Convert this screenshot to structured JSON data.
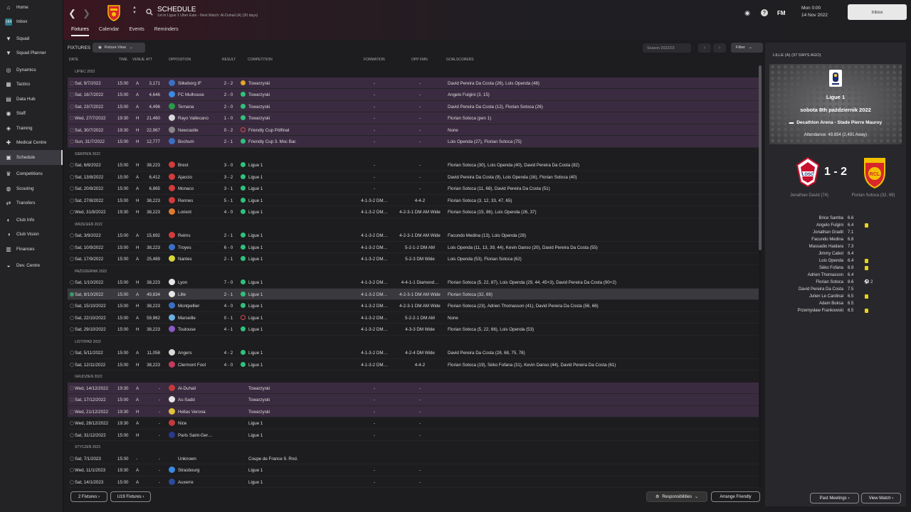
{
  "sidebar": {
    "items": [
      {
        "label": "Home",
        "icon": "home-icon"
      },
      {
        "label": "Inbox",
        "icon": "inbox-icon"
      },
      {
        "label": "Squad",
        "icon": "shirt-icon"
      },
      {
        "label": "Squad Planner",
        "icon": "shirt-icon"
      },
      {
        "label": "Dynamics",
        "icon": "dynamics-icon"
      },
      {
        "label": "Tactics",
        "icon": "tactics-icon"
      },
      {
        "label": "Data Hub",
        "icon": "datahub-icon"
      },
      {
        "label": "Staff",
        "icon": "staff-icon"
      },
      {
        "label": "Training",
        "icon": "training-icon"
      },
      {
        "label": "Medical Centre",
        "icon": "medical-icon"
      },
      {
        "label": "Schedule",
        "icon": "schedule-icon"
      },
      {
        "label": "Competitions",
        "icon": "trophy-icon"
      },
      {
        "label": "Scouting",
        "icon": "scouting-icon"
      },
      {
        "label": "Transfers",
        "icon": "transfers-icon"
      },
      {
        "label": "Club Info",
        "icon": "club-info-icon"
      },
      {
        "label": "Club Vision",
        "icon": "club-vision-icon"
      },
      {
        "label": "Finances",
        "icon": "finances-icon"
      },
      {
        "label": "Dev. Centre",
        "icon": "dev-centre-icon"
      }
    ],
    "inbox_count": "164"
  },
  "header": {
    "title": "SCHEDULE",
    "subtitle": "1st in Ligue 1 Uber Eats - Next Match: Al-Duhail (A) (30 days)",
    "tabs": [
      "Fixtures",
      "Calendar",
      "Events",
      "Reminders"
    ],
    "date_line1": "Mon 0:00",
    "date_line2": "14 Nov 2022",
    "inbox_button": "Inbox",
    "fm_label": "FM"
  },
  "toolbar": {
    "title": "FIXTURES",
    "view_label": "Fixture View",
    "season_label": "Season 2022/23",
    "filter_label": "Filter"
  },
  "columns": {
    "date": "DATE",
    "time": "TIME",
    "venue": "VENUE",
    "att": "ATT",
    "opposition": "OPPOSITION",
    "result": "RESULT",
    "competition": "COMPETITION",
    "formation": "FORMATION",
    "opp_fmn": "OPP FMN",
    "goalscorers": "GOALSCORERS"
  },
  "sections": [
    {
      "label": "LIPIEC 2022",
      "rows": [
        {
          "date": "Sat, 9/7/2022",
          "time": "15:00",
          "venue": "A",
          "att": "3,171",
          "opp": "Silkeborg IF",
          "res": "2 - 2",
          "status": "draw",
          "comp": "Towarzyski",
          "form": "-",
          "oppf": "-",
          "goals": "David Pereira Da Costa (26), Lois Openda (48)",
          "cup": true,
          "crest": "#3a6fc4"
        },
        {
          "date": "Sat, 16/7/2022",
          "time": "15:00",
          "venue": "A",
          "att": "4,646",
          "opp": "FC Mulhouse",
          "res": "2 - 0",
          "status": "win",
          "comp": "Towarzyski",
          "form": "-",
          "oppf": "-",
          "goals": "Angelo Fulgini (3, 15)",
          "cup": true,
          "crest": "#3a8ae0"
        },
        {
          "date": "Sat, 23/7/2022",
          "time": "15:00",
          "venue": "A",
          "att": "4,496",
          "opp": "Ternana",
          "res": "2 - 0",
          "status": "win",
          "comp": "Towarzyski",
          "form": "-",
          "oppf": "-",
          "goals": "David Pereira Da Costa (12), Florian Sotoca (26)",
          "cup": true,
          "crest": "#2a9a4a"
        },
        {
          "date": "Wed, 27/7/2022",
          "time": "19:30",
          "venue": "H",
          "att": "21,460",
          "opp": "Rayo Vallecano",
          "res": "1 - 0",
          "status": "win",
          "comp": "Towarzyski",
          "form": "-",
          "oppf": "-",
          "goals": "Florian Sotoca (pen 1)",
          "cup": true,
          "crest": "#d9d9d9"
        },
        {
          "date": "Sat, 30/7/2022",
          "time": "19:30",
          "venue": "H",
          "att": "22,967",
          "opp": "Newcastle",
          "res": "0 - 2",
          "status": "loss",
          "comp": "Friendly Cup Półfinał",
          "form": "-",
          "oppf": "-",
          "goals": "None",
          "cup": true,
          "crest": "#888888"
        },
        {
          "date": "Sun, 31/7/2022",
          "time": "15:00",
          "venue": "H",
          "att": "12,777",
          "opp": "Bochum",
          "res": "2 - 1",
          "status": "win",
          "comp": "Friendly Cup 3. Msc Bar.",
          "form": "-",
          "oppf": "-",
          "goals": "Lois Openda (27), Florian Sotoca (75)",
          "cup": true,
          "crest": "#3a6fc4"
        }
      ]
    },
    {
      "label": "SIERPIEŃ 2022",
      "rows": [
        {
          "date": "Sat, 6/8/2022",
          "time": "15:00",
          "venue": "H",
          "att": "38,223",
          "opp": "Brest",
          "res": "3 - 0",
          "status": "win",
          "comp": "Ligue 1",
          "form": "-",
          "oppf": "-",
          "goals": "Florian Sotoca (30), Lois Openda (40), David Pereira Da Costa (82)",
          "crest": "#d23b3b"
        },
        {
          "date": "Sat, 13/8/2022",
          "time": "15:00",
          "venue": "A",
          "att": "6,412",
          "opp": "Ajaccio",
          "res": "3 - 2",
          "status": "win",
          "comp": "Ligue 1",
          "form": "-",
          "oppf": "-",
          "goals": "David Pereira Da Costa (9), Lois Openda (16), Florian Sotoca (40)",
          "crest": "#d23b3b"
        },
        {
          "date": "Sat, 20/8/2022",
          "time": "15:00",
          "venue": "A",
          "att": "6,865",
          "opp": "Monaco",
          "res": "3 - 1",
          "status": "win",
          "comp": "Ligue 1",
          "form": "-",
          "oppf": "-",
          "goals": "Florian Sotoca (11, 68), David Pereira Da Costa (51)",
          "crest": "#d23b3b"
        },
        {
          "date": "Sat, 27/8/2022",
          "time": "15:00",
          "venue": "H",
          "att": "38,223",
          "opp": "Rennes",
          "res": "5 - 1",
          "status": "win",
          "comp": "Ligue 1",
          "form": "4-1-3-2 DM…",
          "oppf": "4-4-2",
          "goals": "Florian Sotoca (3, 12, 33, 47, 65)",
          "crest": "#d23b3b"
        },
        {
          "date": "Wed, 31/8/2022",
          "time": "19:30",
          "venue": "H",
          "att": "38,223",
          "opp": "Lorient",
          "res": "4 - 0",
          "status": "win",
          "comp": "Ligue 1",
          "form": "4-1-3-2 DM…",
          "oppf": "4-2-3-1 DM AM Wide",
          "goals": "Florian Sotoca (15, 86), Lois Openda (26, 37)",
          "crest": "#e07a2a"
        }
      ]
    },
    {
      "label": "WRZESIEŃ 2022",
      "rows": [
        {
          "date": "Sat, 3/9/2022",
          "time": "15:00",
          "venue": "A",
          "att": "15,692",
          "opp": "Reims",
          "res": "2 - 1",
          "status": "win",
          "comp": "Ligue 1",
          "form": "4-1-3-2 DM…",
          "oppf": "4-2-3-1 DM AM Wide",
          "goals": "Facundo Medina (13), Lois Openda (28)",
          "crest": "#d23b3b"
        },
        {
          "date": "Sat, 10/9/2022",
          "time": "15:00",
          "venue": "H",
          "att": "38,223",
          "opp": "Troyes",
          "res": "6 - 0",
          "status": "win",
          "comp": "Ligue 1",
          "form": "4-1-3-2 DM…",
          "oppf": "5-2-1-2 DM AM",
          "goals": "Lois Openda (11, 13, 39, 44), Kevin Danso (20), David Pereira Da Costa (55)",
          "crest": "#3a6fc4"
        },
        {
          "date": "Sat, 17/9/2022",
          "time": "15:00",
          "venue": "A",
          "att": "25,489",
          "opp": "Nantes",
          "res": "2 - 1",
          "status": "win",
          "comp": "Ligue 1",
          "form": "4-1-3-2 DM…",
          "oppf": "5-2-3 DM Wide",
          "goals": "Lois Openda (53), Florian Sotoca (62)",
          "crest": "#d8d83a"
        }
      ]
    },
    {
      "label": "PAŹDZIERNIK 2022",
      "rows": [
        {
          "date": "Sat, 1/10/2022",
          "time": "15:00",
          "venue": "H",
          "att": "38,223",
          "opp": "Lyon",
          "res": "7 - 0",
          "status": "win",
          "comp": "Ligue 1",
          "form": "4-1-3-2 DM…",
          "oppf": "4-4-1-1 Diamond…",
          "goals": "Florian Sotoca (5, 22, 87), Lois Openda (29, 44, 45+3), David Pereira Da Costa (90+2)",
          "crest": "#e6e6e6"
        },
        {
          "date": "Sat, 8/10/2022",
          "time": "15:00",
          "venue": "A",
          "att": "49,834",
          "opp": "Lille",
          "res": "2 - 1",
          "status": "win",
          "comp": "Ligue 1",
          "form": "4-1-3-2 DM…",
          "oppf": "4-2-3-1 DM AM Wide",
          "goals": "Florian Sotoca (32, 69)",
          "sel": true,
          "crest": "#e6e6e6"
        },
        {
          "date": "Sat, 15/10/2022",
          "time": "15:00",
          "venue": "H",
          "att": "38,223",
          "opp": "Montpellier",
          "res": "4 - 0",
          "status": "win",
          "comp": "Ligue 1",
          "form": "4-1-3-2 DM…",
          "oppf": "4-2-3-1 DM AM Wide",
          "goals": "Florian Sotoca (23), Adrien Thomasson (41), David Pereira Da Costa (56, 66)",
          "crest": "#3a6fc4"
        },
        {
          "date": "Sat, 22/10/2022",
          "time": "15:00",
          "venue": "A",
          "att": "59,962",
          "opp": "Marseille",
          "res": "0 - 1",
          "status": "loss",
          "comp": "Ligue 1",
          "form": "4-1-3-2 DM…",
          "oppf": "5-2-2-1 DM AM",
          "goals": "None",
          "crest": "#6ab0e0"
        },
        {
          "date": "Sat, 29/10/2022",
          "time": "15:00",
          "venue": "H",
          "att": "38,223",
          "opp": "Toulouse",
          "res": "4 - 1",
          "status": "win",
          "comp": "Ligue 1",
          "form": "4-1-3-2 DM…",
          "oppf": "4-3-3 DM Wide",
          "goals": "Florian Sotoca (5, 22, 66), Lois Openda (53)",
          "crest": "#8a5ac4"
        }
      ]
    },
    {
      "label": "LISTOPAD 2022",
      "rows": [
        {
          "date": "Sat, 5/11/2022",
          "time": "15:00",
          "venue": "A",
          "att": "11,058",
          "opp": "Angers",
          "res": "4 - 2",
          "status": "win",
          "comp": "Ligue 1",
          "form": "4-1-3-2 DM…",
          "oppf": "4-2-4 DM Wide",
          "goals": "David Pereira Da Costa (28, 68, 75, 78)",
          "crest": "#d9d9d9"
        },
        {
          "date": "Sat, 12/11/2022",
          "time": "15:00",
          "venue": "H",
          "att": "38,223",
          "opp": "Clermont Foot",
          "res": "4 - 0",
          "status": "win",
          "comp": "Ligue 1",
          "form": "4-1-3-2 DM…",
          "oppf": "4-4-2",
          "goals": "Florian Sotoca (19), Séko Fofana (31), Kevin Danso (44), David Pereira Da Costa (61)",
          "crest": "#c43a5a"
        }
      ]
    },
    {
      "label": "GRUDZIEŃ 2022",
      "rows": [
        {
          "date": "Wed, 14/12/2022",
          "time": "19:30",
          "venue": "A",
          "att": "-",
          "opp": "Al-Duhail",
          "res": "",
          "status": "",
          "comp": "Towarzyski",
          "form": "-",
          "oppf": "-",
          "goals": "",
          "cup": true,
          "crest": "#c43a3a"
        },
        {
          "date": "Sat, 17/12/2022",
          "time": "15:00",
          "venue": "A",
          "att": "-",
          "opp": "As-Sadd",
          "res": "",
          "status": "",
          "comp": "Towarzyski",
          "form": "-",
          "oppf": "-",
          "goals": "",
          "cup": true,
          "crest": "#e6e6e6"
        },
        {
          "date": "Wed, 21/12/2022",
          "time": "19:30",
          "venue": "H",
          "att": "-",
          "opp": "Hellas Verona",
          "res": "",
          "status": "",
          "comp": "Towarzyski",
          "form": "-",
          "oppf": "-",
          "goals": "",
          "cup": true,
          "crest": "#e0c23a"
        },
        {
          "date": "Wed, 28/12/2022",
          "time": "19:30",
          "venue": "A",
          "att": "-",
          "opp": "Nice",
          "res": "",
          "status": "",
          "comp": "Ligue 1",
          "form": "-",
          "oppf": "-",
          "goals": "",
          "crest": "#c43a3a"
        },
        {
          "date": "Sat, 31/12/2022",
          "time": "15:00",
          "venue": "H",
          "att": "-",
          "opp": "Paris Saint-Ger…",
          "res": "",
          "status": "",
          "comp": "Ligue 1",
          "form": "-",
          "oppf": "-",
          "goals": "",
          "crest": "#2a3a8a"
        }
      ]
    },
    {
      "label": "STYCZEŃ 2023",
      "rows": [
        {
          "date": "Sat, 7/1/2023",
          "time": "15:00",
          "venue": "-",
          "att": "-",
          "opp": "Unknown",
          "res": "",
          "status": "",
          "comp": "Coupe de France 9. Rnd.",
          "form": "",
          "oppf": "",
          "goals": "",
          "crest": ""
        },
        {
          "date": "Wed, 11/1/2023",
          "time": "19:30",
          "venue": "A",
          "att": "-",
          "opp": "Strasbourg",
          "res": "",
          "status": "",
          "comp": "Ligue 1",
          "form": "-",
          "oppf": "-",
          "goals": "",
          "crest": "#3a8ae0"
        },
        {
          "date": "Sat, 14/1/2023",
          "time": "15:00",
          "venue": "A",
          "att": "-",
          "opp": "Auxerre",
          "res": "",
          "status": "",
          "comp": "Ligue 1",
          "form": "-",
          "oppf": "-",
          "goals": "",
          "crest": "#2a4a9a"
        }
      ]
    }
  ],
  "bottom": {
    "fixtures_btn": "2 Fixtures",
    "u19_btn": "U19 Fixtures",
    "responsibilities": "Responsibilities",
    "arrange": "Arrange Friendly",
    "past": "Past Meetings",
    "view": "View Match"
  },
  "panel": {
    "title": "LILLE (A) (37 DAYS AGO)",
    "competition": "Ligue 1",
    "date": "sobota 8th październik 2022",
    "venue": "Decathlon Arena - Stade Pierre Mauroy",
    "attendance": "Attendance: 49,834 (2,491 Away)",
    "score": "1 - 2",
    "home_scorer": "Jonathan David (74)",
    "away_scorer": "Florian Sotoca (32, 69)",
    "ratings": [
      {
        "name": "Brice Samba",
        "score": "6.6",
        "card": false
      },
      {
        "name": "Angelo Fulgini",
        "score": "6.4",
        "card": true
      },
      {
        "name": "Jonathan Gradit",
        "score": "7.1",
        "card": false
      },
      {
        "name": "Facundo Medina",
        "score": "6.8",
        "card": false
      },
      {
        "name": "Massadio Haidara",
        "score": "7.3",
        "card": false
      },
      {
        "name": "Jimmy Cabot",
        "score": "6.4",
        "card": false
      },
      {
        "name": "Lois Openda",
        "score": "6.4",
        "card": true
      },
      {
        "name": "Séko Fofana",
        "score": "6.9",
        "card": true
      },
      {
        "name": "Adrien Thomasson",
        "score": "6.4",
        "card": false
      },
      {
        "name": "Florian Sotoca",
        "score": "8.6",
        "card": false,
        "goals": "2"
      },
      {
        "name": "David Pereira Da Costa",
        "score": "7.5",
        "card": false
      },
      {
        "name": "Julien Le Cardinal",
        "score": "6.5",
        "card": true
      },
      {
        "name": "Adam Buksa",
        "score": "6.5",
        "card": false
      },
      {
        "name": "Przemysław Frankowski",
        "score": "6.5",
        "card": true
      }
    ]
  },
  "colors": {
    "win": "#2fc27a",
    "draw": "#e2a62a",
    "loss": "#e04848",
    "cup_row": "#3b2b40",
    "accent": "#5a1d2a"
  }
}
